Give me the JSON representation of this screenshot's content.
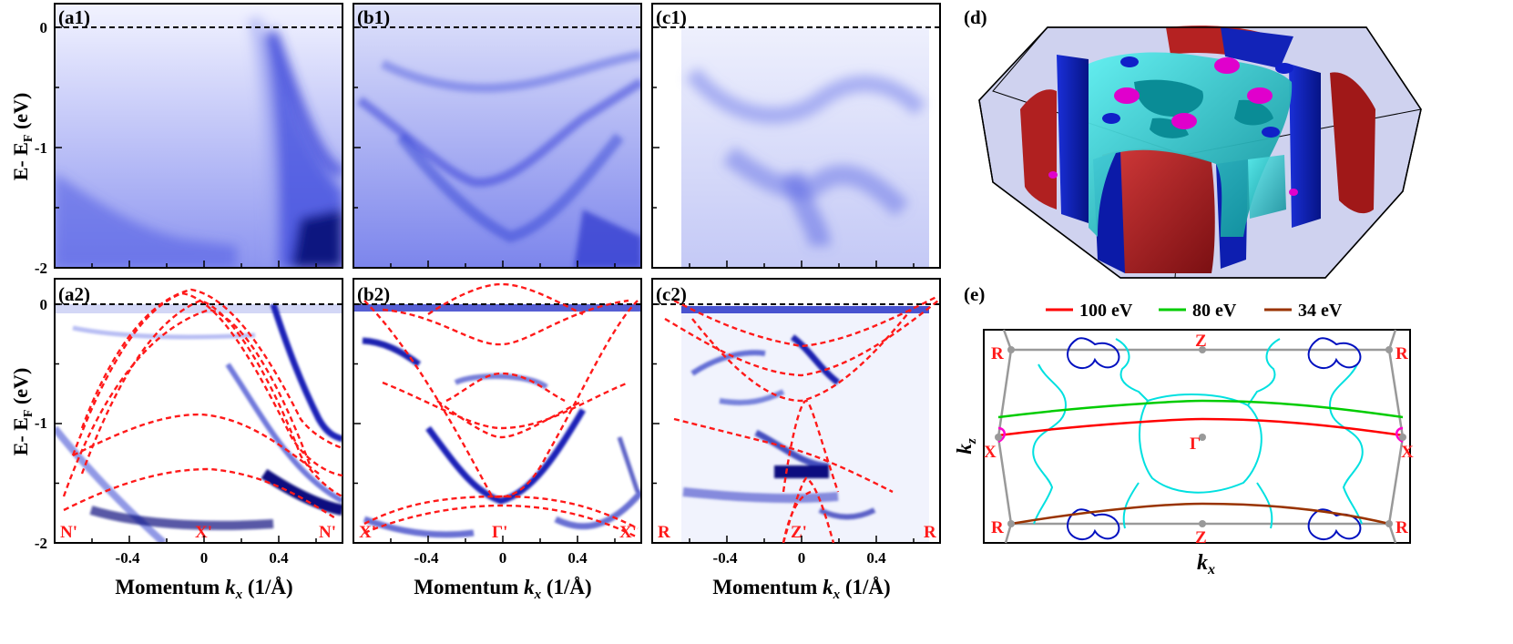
{
  "panels": {
    "a1": {
      "label": "(a1)"
    },
    "b1": {
      "label": "(b1)"
    },
    "c1": {
      "label": "(c1)"
    },
    "a2": {
      "label": "(a2)",
      "points": [
        "N'",
        "X'",
        "N'"
      ]
    },
    "b2": {
      "label": "(b2)",
      "points": [
        "X'",
        "Γ'",
        "X'"
      ]
    },
    "c2": {
      "label": "(c2)",
      "points": [
        "R",
        "Z'",
        "R"
      ]
    },
    "d": {
      "label": "(d)"
    },
    "e": {
      "label": "(e)"
    }
  },
  "axes": {
    "energy_label": "E- E",
    "energy_sub": "F",
    "energy_unit": " (eV)",
    "momentum_label": "Momentum ",
    "momentum_k": "k",
    "momentum_sub": "x",
    "momentum_unit": " (1/Å)",
    "y_ticks": [
      "0",
      "-1",
      "-2"
    ],
    "x_ticks": [
      "-0.4",
      "0",
      "0.4"
    ]
  },
  "legend_e": [
    {
      "label": "100 eV",
      "color": "#ff0000"
    },
    {
      "label": "80 eV",
      "color": "#00cc00"
    },
    {
      "label": "34 eV",
      "color": "#993300"
    }
  ],
  "fs_points": {
    "R": "R",
    "Z": "Z",
    "X": "X",
    "G": "Γ"
  },
  "fs_axes": {
    "kz": "k",
    "kz_sub": "z",
    "kx": "k",
    "kx_sub": "x"
  },
  "colors": {
    "arpes": "#1f2fd8",
    "dft": "#ff1a1a",
    "cyan": "#00e0e0",
    "navy": "#0010c0",
    "magenta": "#ff00aa",
    "grid": "#999999"
  }
}
